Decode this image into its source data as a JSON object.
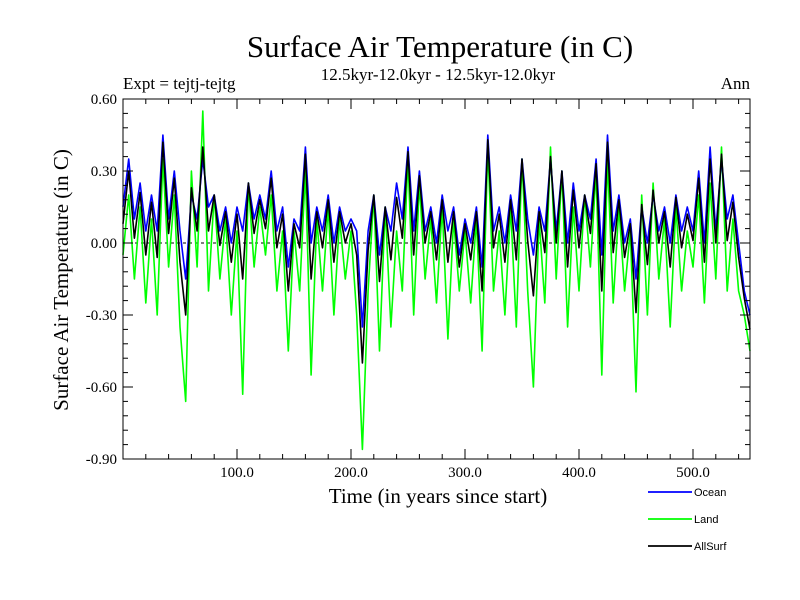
{
  "chart_data": {
    "type": "line",
    "title": "Surface Air Temperature (in C)",
    "subtitle": "12.5kyr-12.0kyr - 12.5kyr-12.0kyr",
    "left_label": "Expt = tejtj-tejtg",
    "right_label": "Ann",
    "xlabel": "Time (in years since start)",
    "ylabel": "Surface Air Temperature (in C)",
    "xlim": [
      0,
      550
    ],
    "ylim": [
      -0.9,
      0.6
    ],
    "xticks": [
      100,
      200,
      300,
      400,
      500
    ],
    "xtick_labels": [
      "100.0",
      "200.0",
      "300.0",
      "400.0",
      "500.0"
    ],
    "yticks": [
      0.6,
      0.3,
      0.0,
      -0.3,
      -0.6,
      -0.9
    ],
    "ytick_labels": [
      "0.60",
      "0.30",
      "0.00",
      "-0.30",
      "-0.60",
      "-0.90"
    ],
    "zero_line": true,
    "legend_position": "below-right",
    "series": [
      {
        "name": "Land",
        "color": "#00ff00",
        "x": [
          0,
          5,
          10,
          15,
          20,
          25,
          30,
          35,
          40,
          45,
          50,
          55,
          60,
          65,
          70,
          75,
          80,
          85,
          90,
          95,
          100,
          105,
          110,
          115,
          120,
          125,
          130,
          135,
          140,
          145,
          150,
          155,
          160,
          165,
          170,
          175,
          180,
          185,
          190,
          195,
          200,
          205,
          210,
          215,
          220,
          225,
          230,
          235,
          240,
          245,
          250,
          255,
          260,
          265,
          270,
          275,
          280,
          285,
          290,
          295,
          300,
          305,
          310,
          315,
          320,
          325,
          330,
          335,
          340,
          345,
          350,
          355,
          360,
          365,
          370,
          375,
          380,
          385,
          390,
          395,
          400,
          405,
          410,
          415,
          420,
          425,
          430,
          435,
          440,
          445,
          450,
          455,
          460,
          465,
          470,
          475,
          480,
          485,
          490,
          495,
          500,
          505,
          510,
          515,
          520,
          525,
          530,
          535,
          540,
          545,
          550
        ],
        "values": [
          -0.05,
          0.2,
          -0.15,
          0.15,
          -0.25,
          0.1,
          -0.3,
          0.35,
          -0.1,
          0.2,
          -0.35,
          -0.66,
          0.3,
          -0.1,
          0.55,
          -0.2,
          0.2,
          -0.15,
          0.1,
          -0.3,
          0.05,
          -0.63,
          0.25,
          -0.1,
          0.15,
          -0.05,
          0.2,
          -0.2,
          0.05,
          -0.45,
          0.05,
          -0.2,
          0.3,
          -0.55,
          0.1,
          -0.2,
          0.15,
          -0.3,
          0.1,
          -0.15,
          0.05,
          -0.3,
          -0.86,
          -0.2,
          0.2,
          -0.45,
          0.15,
          -0.35,
          0.05,
          -0.2,
          0.35,
          -0.3,
          0.25,
          -0.15,
          0.1,
          -0.25,
          0.15,
          -0.4,
          0.1,
          -0.2,
          0.05,
          -0.25,
          0.1,
          -0.45,
          0.4,
          -0.2,
          0.05,
          -0.3,
          0.15,
          -0.35,
          0.35,
          -0.2,
          -0.6,
          0.1,
          -0.25,
          0.4,
          -0.15,
          0.3,
          -0.35,
          0.15,
          -0.2,
          0.2,
          -0.1,
          0.3,
          -0.55,
          0.35,
          -0.25,
          0.15,
          -0.2,
          0.05,
          -0.62,
          0.2,
          -0.3,
          0.25,
          -0.15,
          0.1,
          -0.35,
          0.15,
          -0.2,
          0.05,
          -0.1,
          0.2,
          -0.25,
          0.25,
          -0.15,
          0.4,
          -0.2,
          0.1,
          -0.2,
          -0.3,
          -0.45
        ]
      },
      {
        "name": "Ocean",
        "color": "#0000ff",
        "x": [
          0,
          5,
          10,
          15,
          20,
          25,
          30,
          35,
          40,
          45,
          50,
          55,
          60,
          65,
          70,
          75,
          80,
          85,
          90,
          95,
          100,
          105,
          110,
          115,
          120,
          125,
          130,
          135,
          140,
          145,
          150,
          155,
          160,
          165,
          170,
          175,
          180,
          185,
          190,
          195,
          200,
          205,
          210,
          215,
          220,
          225,
          230,
          235,
          240,
          245,
          250,
          255,
          260,
          265,
          270,
          275,
          280,
          285,
          290,
          295,
          300,
          305,
          310,
          315,
          320,
          325,
          330,
          335,
          340,
          345,
          350,
          355,
          360,
          365,
          370,
          375,
          380,
          385,
          390,
          395,
          400,
          405,
          410,
          415,
          420,
          425,
          430,
          435,
          440,
          445,
          450,
          455,
          460,
          465,
          470,
          475,
          480,
          485,
          490,
          495,
          500,
          505,
          510,
          515,
          520,
          525,
          530,
          535,
          540,
          545,
          550
        ],
        "values": [
          0.15,
          0.35,
          0.1,
          0.25,
          0.05,
          0.2,
          0.05,
          0.45,
          0.1,
          0.3,
          0.05,
          -0.15,
          0.2,
          0.1,
          0.35,
          0.15,
          0.2,
          0.05,
          0.15,
          0.0,
          0.15,
          0.05,
          0.25,
          0.1,
          0.2,
          0.1,
          0.3,
          0.05,
          0.15,
          -0.1,
          0.1,
          0.05,
          0.4,
          0.0,
          0.15,
          0.05,
          0.2,
          0.0,
          0.15,
          0.05,
          0.1,
          0.05,
          -0.35,
          0.05,
          0.2,
          -0.05,
          0.15,
          0.05,
          0.25,
          0.1,
          0.4,
          0.05,
          0.3,
          0.05,
          0.15,
          0.0,
          0.2,
          0.05,
          0.15,
          -0.05,
          0.1,
          0.0,
          0.15,
          -0.1,
          0.45,
          0.05,
          0.15,
          0.0,
          0.2,
          0.05,
          0.35,
          0.1,
          -0.05,
          0.15,
          0.05,
          0.35,
          0.05,
          0.3,
          0.0,
          0.25,
          0.05,
          0.2,
          0.1,
          0.35,
          -0.05,
          0.45,
          0.05,
          0.2,
          0.0,
          0.1,
          -0.15,
          0.15,
          0.0,
          0.2,
          0.05,
          0.15,
          0.0,
          0.2,
          0.05,
          0.15,
          0.05,
          0.3,
          0.0,
          0.4,
          0.05,
          0.35,
          0.1,
          0.2,
          0.0,
          -0.2,
          -0.3
        ]
      },
      {
        "name": "AllSurf",
        "color": "#000000",
        "x": [
          0,
          5,
          10,
          15,
          20,
          25,
          30,
          35,
          40,
          45,
          50,
          55,
          60,
          65,
          70,
          75,
          80,
          85,
          90,
          95,
          100,
          105,
          110,
          115,
          120,
          125,
          130,
          135,
          140,
          145,
          150,
          155,
          160,
          165,
          170,
          175,
          180,
          185,
          190,
          195,
          200,
          205,
          210,
          215,
          220,
          225,
          230,
          235,
          240,
          245,
          250,
          255,
          260,
          265,
          270,
          275,
          280,
          285,
          290,
          295,
          300,
          305,
          310,
          315,
          320,
          325,
          330,
          335,
          340,
          345,
          350,
          355,
          360,
          365,
          370,
          375,
          380,
          385,
          390,
          395,
          400,
          405,
          410,
          415,
          420,
          425,
          430,
          435,
          440,
          445,
          450,
          455,
          460,
          465,
          470,
          475,
          480,
          485,
          490,
          495,
          500,
          505,
          510,
          515,
          520,
          525,
          530,
          535,
          540,
          545,
          550
        ],
        "values": [
          0.08,
          0.3,
          0.02,
          0.21,
          -0.05,
          0.17,
          -0.06,
          0.42,
          0.04,
          0.27,
          -0.08,
          -0.3,
          0.23,
          0.05,
          0.4,
          0.05,
          0.2,
          -0.01,
          0.13,
          -0.08,
          0.12,
          -0.15,
          0.25,
          0.04,
          0.18,
          0.06,
          0.27,
          -0.02,
          0.12,
          -0.2,
          0.08,
          -0.02,
          0.37,
          -0.15,
          0.13,
          -0.02,
          0.18,
          -0.08,
          0.13,
          0.0,
          0.08,
          -0.05,
          -0.5,
          -0.03,
          0.2,
          -0.16,
          0.15,
          -0.07,
          0.19,
          0.02,
          0.38,
          -0.05,
          0.28,
          0.0,
          0.13,
          -0.07,
          0.18,
          -0.08,
          0.13,
          -0.1,
          0.08,
          -0.07,
          0.13,
          -0.2,
          0.43,
          -0.02,
          0.12,
          -0.08,
          0.18,
          -0.07,
          0.35,
          0.01,
          -0.22,
          0.13,
          -0.04,
          0.36,
          0.0,
          0.3,
          -0.1,
          0.22,
          -0.02,
          0.2,
          0.04,
          0.33,
          -0.2,
          0.42,
          -0.04,
          0.18,
          -0.06,
          0.08,
          -0.29,
          0.16,
          -0.09,
          0.22,
          0.0,
          0.13,
          -0.1,
          0.19,
          -0.02,
          0.12,
          0.01,
          0.27,
          -0.08,
          0.35,
          0.0,
          0.37,
          0.01,
          0.17,
          -0.06,
          -0.23,
          -0.36
        ]
      }
    ],
    "legend": [
      {
        "name": "Ocean",
        "color": "#0000ff"
      },
      {
        "name": "Land",
        "color": "#00ff00"
      },
      {
        "name": "AllSurf",
        "color": "#000000"
      }
    ]
  }
}
